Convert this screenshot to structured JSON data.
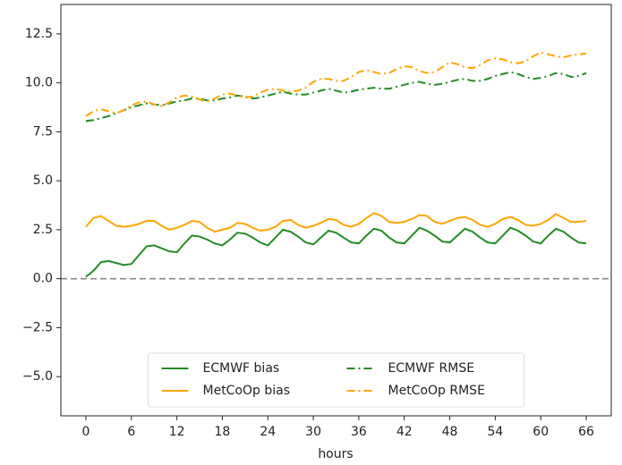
{
  "chart_data": {
    "type": "line",
    "x": [
      0,
      1,
      2,
      3,
      4,
      5,
      6,
      7,
      8,
      9,
      10,
      11,
      12,
      13,
      14,
      15,
      16,
      17,
      18,
      19,
      20,
      21,
      22,
      23,
      24,
      25,
      26,
      27,
      28,
      29,
      30,
      31,
      32,
      33,
      34,
      35,
      36,
      37,
      38,
      39,
      40,
      41,
      42,
      43,
      44,
      45,
      46,
      47,
      48,
      49,
      50,
      51,
      52,
      53,
      54,
      55,
      56,
      57,
      58,
      59,
      60,
      61,
      62,
      63,
      64,
      65,
      66
    ],
    "series": [
      {
        "name": "ECMWF bias",
        "color": "#228b22",
        "dash": "solid",
        "values": [
          0.1,
          0.4,
          0.85,
          0.9,
          0.8,
          0.7,
          0.75,
          1.2,
          1.65,
          1.7,
          1.55,
          1.4,
          1.35,
          1.8,
          2.2,
          2.15,
          2.0,
          1.8,
          1.7,
          2.0,
          2.35,
          2.3,
          2.1,
          1.85,
          1.7,
          2.1,
          2.5,
          2.4,
          2.15,
          1.85,
          1.75,
          2.1,
          2.45,
          2.35,
          2.1,
          1.85,
          1.8,
          2.2,
          2.55,
          2.45,
          2.1,
          1.85,
          1.8,
          2.2,
          2.6,
          2.45,
          2.2,
          1.9,
          1.85,
          2.2,
          2.55,
          2.4,
          2.1,
          1.85,
          1.8,
          2.2,
          2.6,
          2.45,
          2.2,
          1.9,
          1.8,
          2.2,
          2.55,
          2.4,
          2.1,
          1.85,
          1.8
        ]
      },
      {
        "name": "MetCoOp bias",
        "color": "#ffa500",
        "dash": "solid",
        "values": [
          2.65,
          3.1,
          3.2,
          2.95,
          2.7,
          2.65,
          2.7,
          2.8,
          2.95,
          2.95,
          2.7,
          2.5,
          2.6,
          2.75,
          2.95,
          2.9,
          2.6,
          2.4,
          2.5,
          2.6,
          2.85,
          2.8,
          2.6,
          2.45,
          2.5,
          2.65,
          2.95,
          3.0,
          2.75,
          2.6,
          2.7,
          2.85,
          3.05,
          3.0,
          2.75,
          2.65,
          2.8,
          3.1,
          3.35,
          3.2,
          2.9,
          2.85,
          2.9,
          3.05,
          3.25,
          3.2,
          2.9,
          2.8,
          2.95,
          3.1,
          3.15,
          3.0,
          2.75,
          2.65,
          2.8,
          3.05,
          3.15,
          3.0,
          2.75,
          2.7,
          2.8,
          3.0,
          3.3,
          3.1,
          2.9,
          2.9,
          2.95
        ]
      },
      {
        "name": "ECMWF RMSE",
        "color": "#228b22",
        "dash": "dashdot",
        "values": [
          8.05,
          8.1,
          8.2,
          8.3,
          8.45,
          8.6,
          8.75,
          8.85,
          8.95,
          8.9,
          8.85,
          8.95,
          9.05,
          9.1,
          9.2,
          9.2,
          9.1,
          9.1,
          9.2,
          9.25,
          9.35,
          9.3,
          9.2,
          9.25,
          9.35,
          9.45,
          9.55,
          9.45,
          9.4,
          9.4,
          9.5,
          9.6,
          9.7,
          9.6,
          9.5,
          9.55,
          9.65,
          9.7,
          9.75,
          9.7,
          9.7,
          9.8,
          9.9,
          10.0,
          10.05,
          9.95,
          9.9,
          9.95,
          10.05,
          10.15,
          10.2,
          10.1,
          10.1,
          10.2,
          10.35,
          10.45,
          10.55,
          10.45,
          10.3,
          10.2,
          10.25,
          10.35,
          10.5,
          10.45,
          10.3,
          10.35,
          10.5
        ]
      },
      {
        "name": "MetCoOp RMSE",
        "color": "#ffa500",
        "dash": "dashdot",
        "values": [
          8.3,
          8.55,
          8.65,
          8.55,
          8.45,
          8.6,
          8.85,
          9.0,
          9.05,
          8.9,
          8.8,
          9.0,
          9.25,
          9.35,
          9.3,
          9.15,
          9.05,
          9.2,
          9.4,
          9.45,
          9.35,
          9.25,
          9.3,
          9.5,
          9.65,
          9.7,
          9.6,
          9.55,
          9.6,
          9.75,
          10.05,
          10.2,
          10.2,
          10.1,
          10.1,
          10.3,
          10.55,
          10.65,
          10.55,
          10.45,
          10.5,
          10.7,
          10.85,
          10.8,
          10.6,
          10.5,
          10.55,
          10.8,
          11.05,
          10.95,
          10.8,
          10.75,
          10.9,
          11.15,
          11.25,
          11.2,
          11.05,
          11.0,
          11.1,
          11.35,
          11.55,
          11.45,
          11.35,
          11.3,
          11.4,
          11.45,
          11.5
        ]
      }
    ],
    "xlabel": "hours",
    "xlim": [
      -3.3,
      69.3
    ],
    "xticks": [
      0,
      6,
      12,
      18,
      24,
      30,
      36,
      42,
      48,
      54,
      60,
      66
    ],
    "ylim": [
      -7.0,
      14.0
    ],
    "yticks": [
      {
        "value": -5,
        "label": "−5.0"
      },
      {
        "value": -2.5,
        "label": "−2.5"
      },
      {
        "value": 0,
        "label": "0.0"
      },
      2.5,
      {
        "value": 5,
        "label": "5.0"
      },
      7.5,
      {
        "value": 10,
        "label": "10.0"
      },
      12.5
    ],
    "hlines": [
      {
        "value": 0,
        "color": "#888888"
      }
    ],
    "legend": "lower center"
  }
}
